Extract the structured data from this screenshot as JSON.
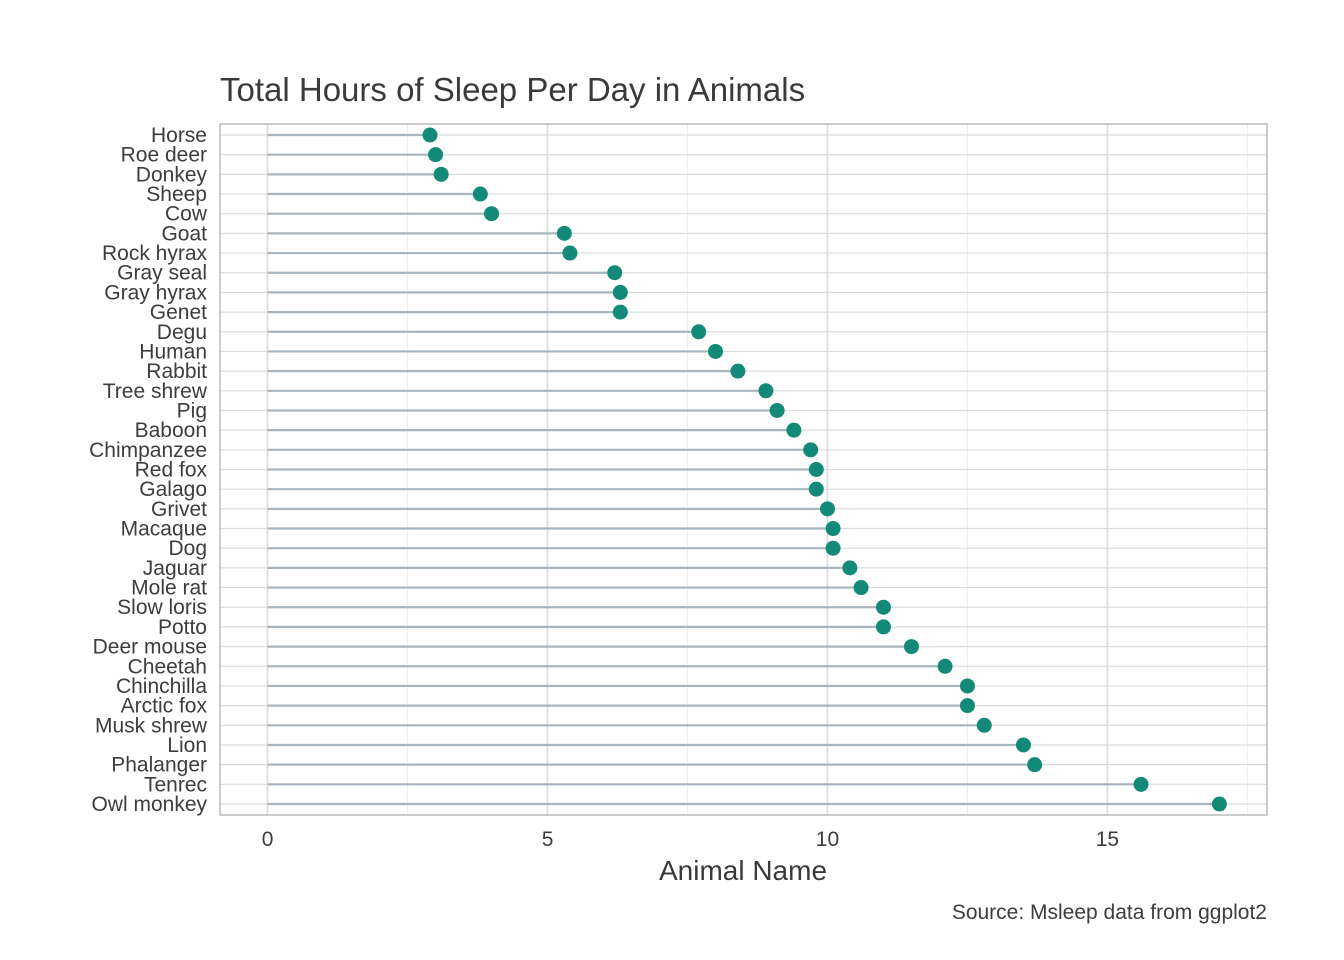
{
  "chart_data": {
    "type": "lollipop",
    "title": "Total Hours of Sleep Per Day in Animals",
    "xlabel": "Animal Name",
    "ylabel": "",
    "caption": "Source: Msleep data from ggplot2",
    "xlim": [
      -0.85,
      17.85
    ],
    "x_ticks": [
      0,
      5,
      10,
      15
    ],
    "grid": true,
    "colors": {
      "point": "#138a78",
      "stem": "#a9b4be",
      "grid": "#dcdcdc",
      "border": "#aaaaaa"
    },
    "categories": [
      "Horse",
      "Roe deer",
      "Donkey",
      "Sheep",
      "Cow",
      "Goat",
      "Rock hyrax",
      "Gray seal",
      "Gray hyrax",
      "Genet",
      "Degu",
      "Human",
      "Rabbit",
      "Tree shrew",
      "Pig",
      "Baboon",
      "Chimpanzee",
      "Red fox",
      "Galago",
      "Grivet",
      "Macaque",
      "Dog",
      "Jaguar",
      "Mole rat",
      "Slow loris",
      "Potto",
      "Deer mouse",
      "Cheetah",
      "Chinchilla",
      "Arctic fox",
      "Musk shrew",
      "Lion",
      "Phalanger",
      "Tenrec",
      "Owl monkey"
    ],
    "values": [
      2.9,
      3.0,
      3.1,
      3.8,
      4.0,
      5.3,
      5.4,
      6.2,
      6.3,
      6.3,
      7.7,
      8.0,
      8.4,
      8.9,
      9.1,
      9.4,
      9.7,
      9.8,
      9.8,
      10.0,
      10.1,
      10.1,
      10.4,
      10.6,
      11.0,
      11.0,
      11.5,
      12.1,
      12.5,
      12.5,
      12.8,
      13.5,
      13.7,
      15.6,
      17.0
    ]
  }
}
